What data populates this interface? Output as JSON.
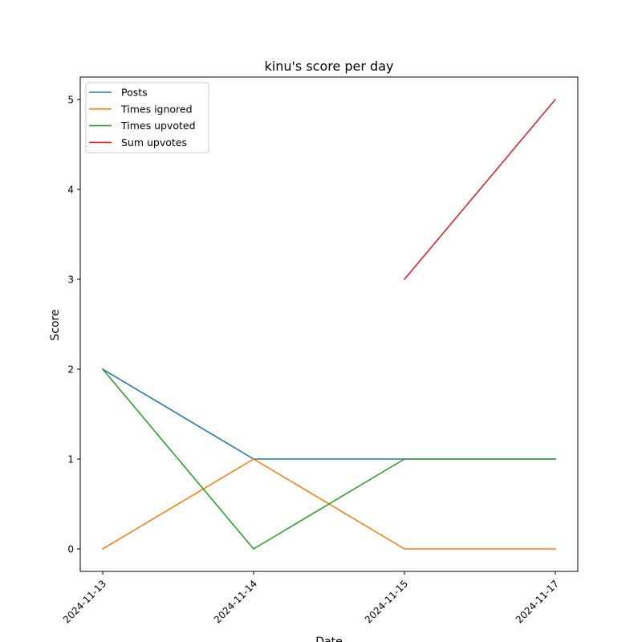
{
  "chart_data": {
    "type": "line",
    "title": "kinu's score per day",
    "xlabel": "Date",
    "ylabel": "Score",
    "categories": [
      "2024-11-13",
      "2024-11-14",
      "2024-11-15",
      "2024-11-17"
    ],
    "ylim": [
      -0.25,
      5.25
    ],
    "yticks": [
      0,
      1,
      2,
      3,
      4,
      5
    ],
    "grid": false,
    "legend_position": "top-left",
    "series": [
      {
        "name": "Posts",
        "color": "#1f77b4",
        "values": [
          2,
          1,
          1,
          1
        ]
      },
      {
        "name": "Times ignored",
        "color": "#ff7f0e",
        "values": [
          0,
          1,
          0,
          0
        ]
      },
      {
        "name": "Times upvoted",
        "color": "#2ca02c",
        "values": [
          2,
          0,
          1,
          1
        ]
      },
      {
        "name": "Sum upvotes",
        "color": "#d62728",
        "values": [
          null,
          null,
          3,
          5
        ]
      }
    ]
  }
}
